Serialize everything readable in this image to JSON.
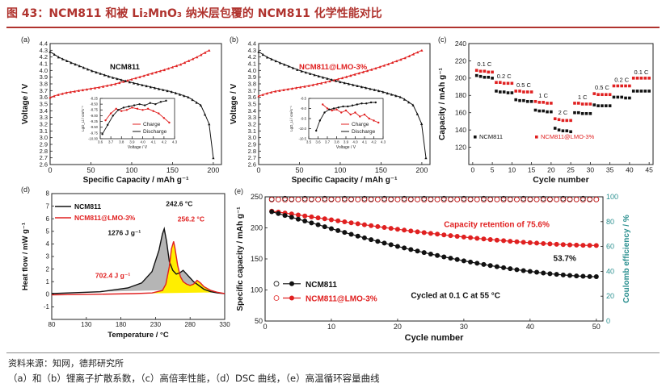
{
  "figure": {
    "title": "图 43：NCM811 和被 Li₂MnO₃ 纳米层包覆的 NCM811 化学性能对比",
    "source": "资料来源：知网，德邦研究所",
    "note": "（a）和（b）锂离子扩散系数，（c）高倍率性能，（d）DSC 曲线，（e）高温循环容量曲线"
  },
  "colors": {
    "black_series": "#111111",
    "red_series": "#e02020",
    "title_red": "#b0332e",
    "dsc_gray": "#b5b5b5",
    "dsc_yellow": "#ffee00",
    "ce_teal": "#2a8f8f"
  },
  "chart_data": [
    {
      "id": "a",
      "panel_label": "(a)",
      "type": "line",
      "title": "NCM811",
      "xlabel": "Specific Capacity / mAh g⁻¹",
      "ylabel": "Voltage / V",
      "xlim": [
        0,
        210
      ],
      "ylim": [
        2.6,
        4.4
      ],
      "xticks": [
        0,
        50,
        100,
        150,
        200
      ],
      "yticks": [
        2.6,
        2.7,
        2.8,
        2.9,
        3.0,
        3.1,
        3.2,
        3.3,
        3.4,
        3.5,
        3.6,
        3.7,
        3.8,
        3.9,
        4.0,
        4.1,
        4.2,
        4.3,
        4.4
      ],
      "charge": {
        "x": [
          0,
          10,
          20,
          40,
          60,
          80,
          100,
          120,
          140,
          160,
          180,
          195
        ],
        "y": [
          3.6,
          3.64,
          3.67,
          3.71,
          3.75,
          3.8,
          3.87,
          3.94,
          4.01,
          4.09,
          4.2,
          4.3
        ]
      },
      "discharge": {
        "x": [
          0,
          10,
          25,
          50,
          75,
          100,
          125,
          150,
          170,
          185,
          195,
          200
        ],
        "y": [
          4.28,
          4.2,
          4.12,
          4.0,
          3.9,
          3.82,
          3.75,
          3.68,
          3.6,
          3.48,
          3.2,
          2.7
        ]
      },
      "inset": {
        "xlabel": "Voltage / V",
        "ylabel": "LgD_Li / cm²s⁻¹",
        "xlim": [
          3.6,
          4.3
        ],
        "ylim": [
          -10.0,
          -8.25
        ],
        "xticks": [
          "3.6",
          "3.7",
          "3.8",
          "3.9",
          "4.0",
          "4.1",
          "4.2",
          "4.3"
        ],
        "yticks": [
          "-8.25",
          "-8.50",
          "-8.75",
          "-9.00",
          "-9.25",
          "-9.50",
          "-9.75",
          "-10.00"
        ],
        "legend": [
          "Charge",
          "Discharge"
        ],
        "charge": {
          "x": [
            3.65,
            3.7,
            3.75,
            3.8,
            3.85,
            3.9,
            3.95,
            4.0,
            4.05,
            4.1,
            4.15,
            4.2,
            4.25
          ],
          "y": [
            -9.2,
            -8.9,
            -8.7,
            -8.8,
            -8.75,
            -8.65,
            -8.7,
            -8.75,
            -8.7,
            -8.8,
            -8.9,
            -9.1,
            -9.3
          ]
        },
        "discharge": {
          "x": [
            3.62,
            3.67,
            3.72,
            3.77,
            3.82,
            3.87,
            3.92,
            3.97,
            4.02,
            4.07,
            4.12,
            4.17,
            4.22
          ],
          "y": [
            -9.8,
            -9.4,
            -9.0,
            -8.75,
            -8.65,
            -8.6,
            -8.55,
            -8.5,
            -8.55,
            -8.45,
            -8.5,
            -8.4,
            -8.35
          ]
        }
      }
    },
    {
      "id": "b",
      "panel_label": "(b)",
      "type": "line",
      "title": "NCM811@LMO-3%",
      "xlabel": "Specific Capacity / mAh g⁻¹",
      "ylabel": "Voltage / V",
      "xlim": [
        0,
        210
      ],
      "ylim": [
        2.6,
        4.4
      ],
      "xticks": [
        0,
        50,
        100,
        150,
        200
      ],
      "yticks": [
        2.6,
        2.7,
        2.8,
        2.9,
        3.0,
        3.1,
        3.2,
        3.3,
        3.4,
        3.5,
        3.6,
        3.7,
        3.8,
        3.9,
        4.0,
        4.1,
        4.2,
        4.3,
        4.4
      ],
      "charge": {
        "x": [
          0,
          10,
          20,
          40,
          60,
          80,
          100,
          120,
          140,
          160,
          180,
          200
        ],
        "y": [
          3.62,
          3.66,
          3.69,
          3.73,
          3.77,
          3.82,
          3.88,
          3.95,
          4.02,
          4.1,
          4.19,
          4.3
        ]
      },
      "discharge": {
        "x": [
          0,
          10,
          25,
          50,
          75,
          100,
          125,
          150,
          175,
          190,
          200,
          205
        ],
        "y": [
          4.28,
          4.2,
          4.12,
          4.0,
          3.91,
          3.83,
          3.76,
          3.69,
          3.6,
          3.48,
          3.2,
          2.7
        ]
      },
      "inset": {
        "xlabel": "Voltage / V",
        "ylabel": "LgD_Li / cm²s⁻¹",
        "xlim": [
          3.5,
          4.3
        ],
        "ylim": [
          -10.5,
          -8.5
        ],
        "xticks": [
          "3.5",
          "3.6",
          "3.7",
          "3.8",
          "3.9",
          "4.0",
          "4.1",
          "4.2",
          "4.3"
        ],
        "yticks": [
          "-8.5",
          "-9.0",
          "-9.5",
          "-10.0",
          "-10.5"
        ],
        "legend": [
          "Charge",
          "Discharge"
        ],
        "charge": {
          "x": [
            3.65,
            3.7,
            3.75,
            3.8,
            3.85,
            3.9,
            3.95,
            4.0,
            4.05,
            4.1,
            4.15,
            4.2,
            4.25
          ],
          "y": [
            -8.8,
            -9.0,
            -9.1,
            -9.05,
            -9.2,
            -9.1,
            -9.3,
            -9.2,
            -9.4,
            -9.3,
            -9.5,
            -9.6,
            -9.7
          ]
        },
        "discharge": {
          "x": [
            3.58,
            3.62,
            3.67,
            3.72,
            3.77,
            3.82,
            3.87,
            3.92,
            3.97,
            4.02,
            4.07,
            4.12,
            4.17,
            4.22
          ],
          "y": [
            -10.1,
            -9.6,
            -9.2,
            -9.05,
            -9.0,
            -8.95,
            -8.9,
            -8.9,
            -8.85,
            -8.8,
            -8.75,
            -8.75,
            -8.7,
            -8.7
          ]
        }
      }
    },
    {
      "id": "c",
      "panel_label": "(c)",
      "type": "scatter",
      "xlabel": "Cycle number",
      "ylabel": "Capacity / mAh g⁻¹",
      "xlim": [
        -1,
        46
      ],
      "ylim": [
        100,
        240
      ],
      "xticks": [
        0,
        5,
        10,
        15,
        20,
        25,
        30,
        35,
        40,
        45
      ],
      "yticks": [
        120,
        140,
        160,
        180,
        200,
        220,
        240
      ],
      "rate_labels": [
        "0.1 C",
        "0.2 C",
        "0.5 C",
        "1 C",
        "2 C",
        "1 C",
        "0.5 C",
        "0.2 C",
        "0.1 C"
      ],
      "legend": [
        "NCM811",
        "NCM811@LMO-3%"
      ],
      "series": [
        {
          "name": "NCM811",
          "values": [
            203,
            202,
            201,
            201,
            200,
            185,
            184,
            184,
            183,
            183,
            175,
            174,
            174,
            173,
            173,
            163,
            162,
            162,
            161,
            161,
            142,
            140,
            139,
            139,
            138,
            160,
            160,
            159,
            159,
            159,
            169,
            168,
            168,
            168,
            168,
            178,
            178,
            178,
            177,
            177,
            185,
            185,
            185,
            185,
            185
          ]
        },
        {
          "name": "NCM811@LMO-3%",
          "values": [
            209,
            208,
            208,
            207,
            207,
            195,
            195,
            194,
            194,
            194,
            185,
            185,
            184,
            184,
            184,
            173,
            172,
            172,
            171,
            171,
            153,
            152,
            151,
            151,
            151,
            171,
            171,
            170,
            170,
            170,
            182,
            181,
            181,
            181,
            181,
            191,
            191,
            191,
            191,
            191,
            200,
            200,
            200,
            200,
            200
          ]
        }
      ]
    },
    {
      "id": "d",
      "panel_label": "(d)",
      "type": "area",
      "xlabel": "Temperature / °C",
      "ylabel": "Heat flow / mW g⁻¹",
      "xlim": [
        80,
        330
      ],
      "ylim": [
        -2,
        8
      ],
      "xticks": [
        80,
        130,
        180,
        230,
        280,
        330
      ],
      "yticks": [
        -1,
        0,
        1,
        2,
        3,
        4,
        5,
        6,
        7,
        8
      ],
      "legend": [
        "NCM811",
        "NCM811@LMO-3%"
      ],
      "annotations": [
        "242.6 °C",
        "256.2 °C",
        "1276 J g⁻¹",
        "702.4 J g⁻¹"
      ],
      "series": [
        {
          "name": "NCM811",
          "x": [
            80,
            150,
            190,
            210,
            225,
            235,
            240,
            242.6,
            246,
            250,
            255,
            260,
            265,
            270,
            275,
            280,
            285,
            290,
            300,
            310,
            320,
            330
          ],
          "values": [
            0.05,
            0.2,
            0.5,
            0.9,
            1.8,
            3.5,
            4.8,
            5.2,
            4.2,
            2.6,
            1.9,
            1.6,
            1.7,
            1.9,
            1.6,
            1.3,
            1.0,
            0.8,
            0.4,
            0.2,
            0.1,
            0.05
          ]
        },
        {
          "name": "NCM811@LMO-3%",
          "x": [
            80,
            150,
            200,
            225,
            240,
            245,
            250,
            253,
            256.2,
            258,
            262,
            266,
            270,
            275,
            280,
            285,
            290,
            295,
            300,
            310,
            320,
            330
          ],
          "values": [
            -0.05,
            0.0,
            0.05,
            0.1,
            0.3,
            0.8,
            2.2,
            3.6,
            4.2,
            3.7,
            2.3,
            1.4,
            1.0,
            0.8,
            0.7,
            0.8,
            1.1,
            0.9,
            0.6,
            0.3,
            0.15,
            0.05
          ]
        }
      ]
    },
    {
      "id": "e",
      "panel_label": "(e)",
      "type": "scatter",
      "xlabel": "Cycle number",
      "ylabel": "Specific capacity / mAh g⁻¹",
      "y2label": "Coulomb efficiency / %",
      "xlim": [
        0,
        51
      ],
      "ylim": [
        50,
        250
      ],
      "y2lim": [
        0,
        100
      ],
      "xticks": [
        0,
        10,
        20,
        30,
        40,
        50
      ],
      "yticks": [
        50,
        100,
        150,
        200,
        250
      ],
      "y2ticks": [
        0,
        20,
        40,
        60,
        80,
        100
      ],
      "legend": [
        "NCM811",
        "NCM811@LMO-3%"
      ],
      "annotations": [
        "Capacity retention of 75.6%",
        "53.7%",
        "Cycled at 0.1 C at 55 °C"
      ],
      "series": [
        {
          "name": "NCM811",
          "start": 226,
          "mid": [
            8,
            205
          ],
          "end": 121.4
        },
        {
          "name": "NCM811@LMO-3%",
          "start": 227,
          "mid": [
            10,
            213
          ],
          "end": 171.6
        },
        {
          "name": "NCM811 CE",
          "ce": 98.5
        },
        {
          "name": "NCM811@LMO-3% CE",
          "ce": 97.5
        }
      ]
    }
  ]
}
